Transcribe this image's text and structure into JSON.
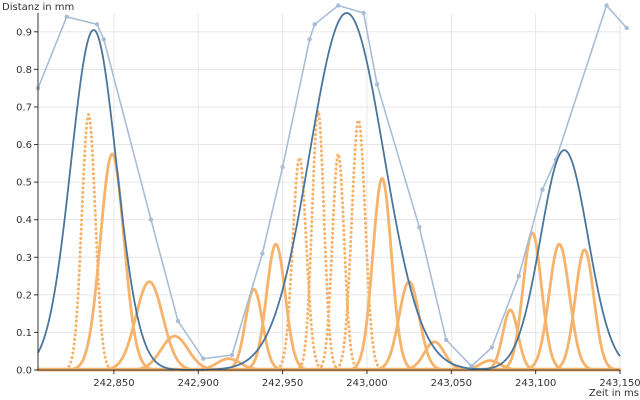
{
  "chart_data": {
    "type": "line",
    "title": "",
    "xlabel": "Zeit in ms",
    "ylabel": "Distanz in mm",
    "xlim": [
      242805,
      243150
    ],
    "ylim": [
      0,
      0.95
    ],
    "grid": true,
    "legend": "none",
    "x_ticks": [
      {
        "value": 242850,
        "label": "242,850"
      },
      {
        "value": 242900,
        "label": "242,900"
      },
      {
        "value": 242950,
        "label": "242,950"
      },
      {
        "value": 243000,
        "label": "243,000"
      },
      {
        "value": 243050,
        "label": "243,050"
      },
      {
        "value": 243100,
        "label": "243,100"
      },
      {
        "value": 243150,
        "label": "243,150"
      }
    ],
    "y_ticks": [
      {
        "value": 0,
        "label": "0.0"
      },
      {
        "value": 0.1,
        "label": "0.1"
      },
      {
        "value": 0.2,
        "label": "0.2"
      },
      {
        "value": 0.3,
        "label": "0.3"
      },
      {
        "value": 0.4,
        "label": "0.4"
      },
      {
        "value": 0.5,
        "label": "0.5"
      },
      {
        "value": 0.6,
        "label": "0.6"
      },
      {
        "value": 0.7,
        "label": "0.7"
      },
      {
        "value": 0.8,
        "label": "0.8"
      },
      {
        "value": 0.9,
        "label": "0.9"
      }
    ],
    "measured": {
      "color": "#a9bdd6",
      "points": [
        [
          242805,
          0.75
        ],
        [
          242822,
          0.94
        ],
        [
          242840,
          0.92
        ],
        [
          242844,
          0.88
        ],
        [
          242872,
          0.4
        ],
        [
          242888,
          0.13
        ],
        [
          242903,
          0.03
        ],
        [
          242920,
          0.04
        ],
        [
          242938,
          0.31
        ],
        [
          242950,
          0.54
        ],
        [
          242966,
          0.88
        ],
        [
          242969,
          0.92
        ],
        [
          242983,
          0.97
        ],
        [
          242998,
          0.95
        ],
        [
          243006,
          0.76
        ],
        [
          243031,
          0.38
        ],
        [
          243047,
          0.08
        ],
        [
          243062,
          0.01
        ],
        [
          243074,
          0.06
        ],
        [
          243090,
          0.25
        ],
        [
          243104,
          0.48
        ],
        [
          243112,
          0.56
        ],
        [
          243142,
          0.97
        ],
        [
          243154,
          0.91
        ]
      ]
    },
    "fit": {
      "color": "#4a759c",
      "description_free": true,
      "peaks": [
        {
          "x": 242838,
          "y": 0.905,
          "w": 13.5
        },
        {
          "x": 242988,
          "y": 0.95,
          "w": 22
        },
        {
          "x": 243117,
          "y": 0.585,
          "w": 14
        }
      ]
    },
    "components": {
      "color": "#f5b36b",
      "pulses": [
        {
          "center": 242835,
          "height": 0.68,
          "width": 4,
          "style": "dotted"
        },
        {
          "center": 242849,
          "height": 0.575,
          "width": 7,
          "style": "solid"
        },
        {
          "center": 242871,
          "height": 0.235,
          "width": 8,
          "style": "solid"
        },
        {
          "center": 242886,
          "height": 0.09,
          "width": 8,
          "style": "solid"
        },
        {
          "center": 242918,
          "height": 0.03,
          "width": 7,
          "style": "solid"
        },
        {
          "center": 242933,
          "height": 0.215,
          "width": 5,
          "style": "solid"
        },
        {
          "center": 242946,
          "height": 0.335,
          "width": 5.5,
          "style": "solid"
        },
        {
          "center": 242960,
          "height": 0.565,
          "width": 4,
          "style": "dotted"
        },
        {
          "center": 242971,
          "height": 0.69,
          "width": 3.5,
          "style": "dotted"
        },
        {
          "center": 242983,
          "height": 0.575,
          "width": 3.5,
          "style": "dotted"
        },
        {
          "center": 242995,
          "height": 0.665,
          "width": 4,
          "style": "dotted"
        },
        {
          "center": 243009,
          "height": 0.51,
          "width": 5.5,
          "style": "solid"
        },
        {
          "center": 243025,
          "height": 0.235,
          "width": 6,
          "style": "solid"
        },
        {
          "center": 243040,
          "height": 0.075,
          "width": 6,
          "style": "solid"
        },
        {
          "center": 243073,
          "height": 0.025,
          "width": 6,
          "style": "solid"
        },
        {
          "center": 243085,
          "height": 0.16,
          "width": 4.5,
          "style": "solid"
        },
        {
          "center": 243098,
          "height": 0.365,
          "width": 5.5,
          "style": "solid"
        },
        {
          "center": 243114,
          "height": 0.335,
          "width": 6,
          "style": "solid"
        },
        {
          "center": 243129,
          "height": 0.32,
          "width": 5.5,
          "style": "solid"
        }
      ]
    }
  }
}
